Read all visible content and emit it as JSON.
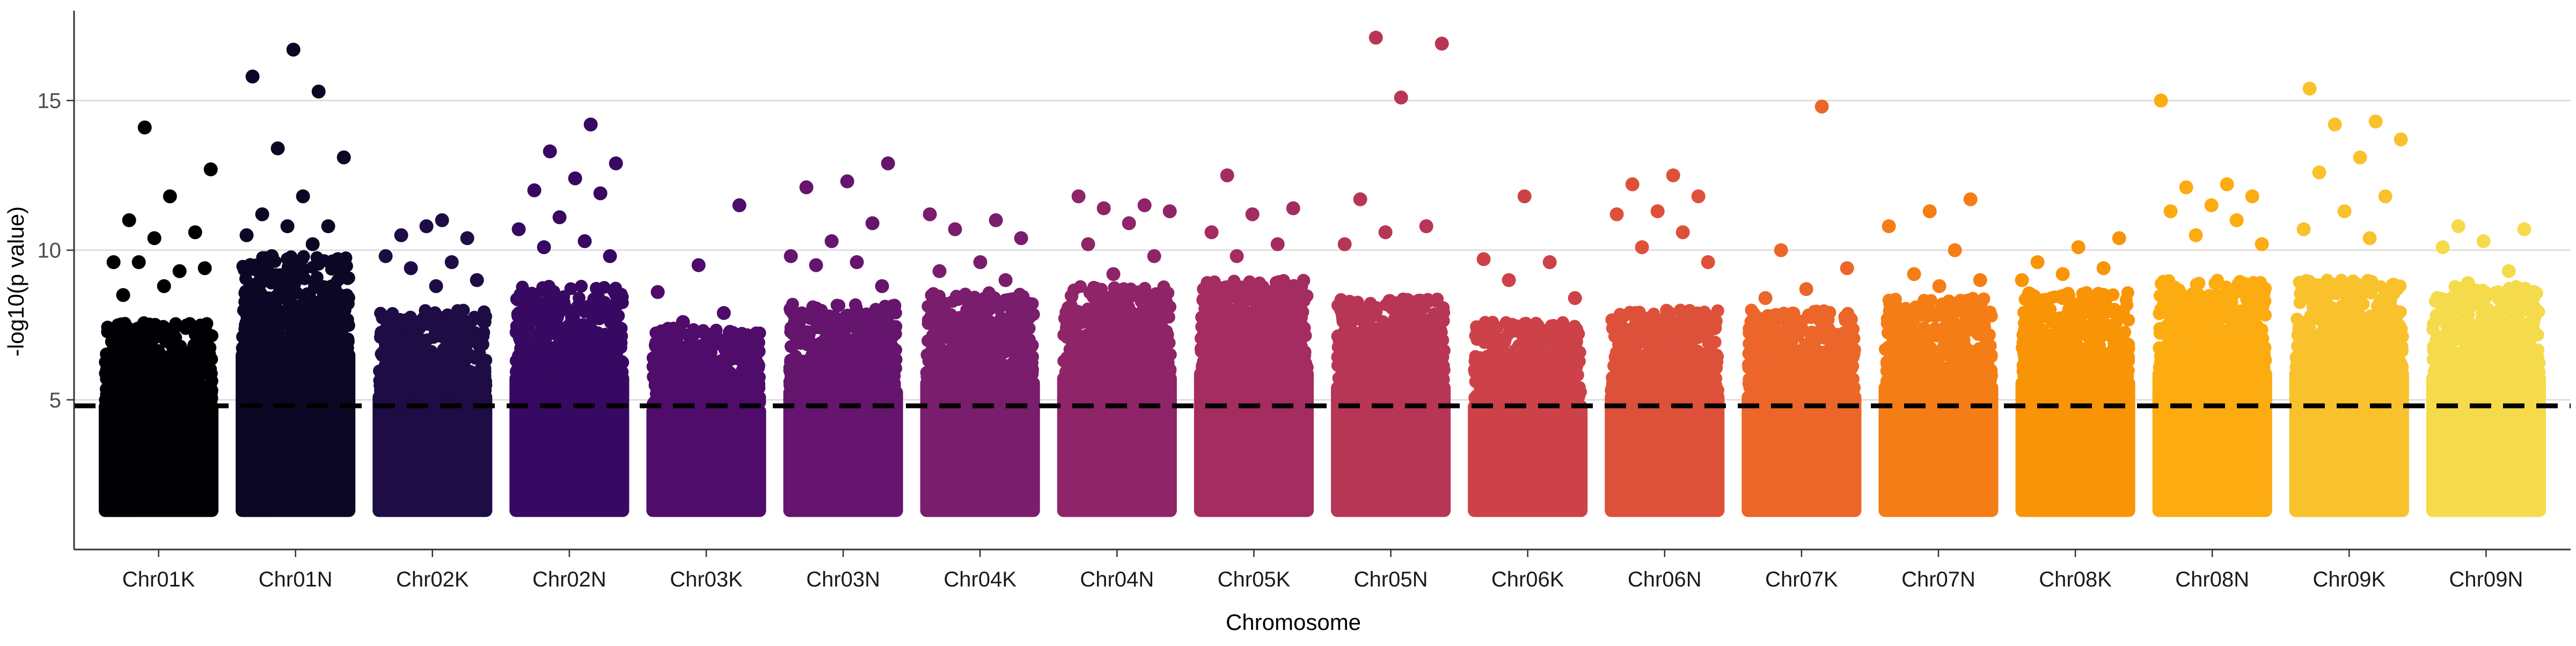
{
  "chart_data": {
    "type": "scatter",
    "title": "",
    "xlabel": "Chromosome",
    "ylabel": "-log10(p value)",
    "ylim": [
      0,
      18
    ],
    "y_ticks": [
      5,
      10,
      15
    ],
    "grid": "horizontal major lines only",
    "threshold": {
      "y": 4.8,
      "style": "dashed",
      "color": "#000000"
    },
    "categories": [
      "Chr01K",
      "Chr01N",
      "Chr02K",
      "Chr02N",
      "Chr03K",
      "Chr03N",
      "Chr04K",
      "Chr04N",
      "Chr05K",
      "Chr05N",
      "Chr06K",
      "Chr06N",
      "Chr07K",
      "Chr07N",
      "Chr08K",
      "Chr08N",
      "Chr09K",
      "Chr09N"
    ],
    "colors": [
      "#000004",
      "#0b0724",
      "#1e0c45",
      "#380962",
      "#4f0c6b",
      "#65156e",
      "#7a1d6d",
      "#8f2469",
      "#a42c60",
      "#b83655",
      "#cc4248",
      "#dd513a",
      "#eb6628",
      "#f57d15",
      "#fa9407",
      "#fcab10",
      "#f9c22c",
      "#f5db4c"
    ],
    "series": [
      {
        "name": "Chr01K",
        "peak_values": [
          14.1,
          12.7,
          11.8,
          11.0,
          10.6,
          10.4,
          9.6,
          9.3,
          9.6,
          9.4,
          8.8,
          8.5
        ],
        "baseline_top": 6.4
      },
      {
        "name": "Chr01N",
        "peak_values": [
          16.7,
          15.8,
          15.3,
          13.4,
          13.1,
          11.8,
          11.2,
          10.8,
          10.8,
          10.5,
          10.2,
          9.8,
          9.7
        ],
        "baseline_top": 8.6
      },
      {
        "name": "Chr02K",
        "peak_values": [
          11.0,
          10.5,
          10.4,
          10.8,
          9.8,
          9.6,
          9.4,
          9.0,
          8.8
        ],
        "baseline_top": 6.8
      },
      {
        "name": "Chr02N",
        "peak_values": [
          14.2,
          13.3,
          12.9,
          12.4,
          12.0,
          11.9,
          11.1,
          10.7,
          10.3,
          10.1,
          9.8
        ],
        "baseline_top": 7.6
      },
      {
        "name": "Chr03K",
        "peak_values": [
          11.5,
          9.5,
          8.6,
          7.9,
          7.6
        ],
        "baseline_top": 6.2
      },
      {
        "name": "Chr03N",
        "peak_values": [
          12.9,
          12.3,
          12.1,
          10.9,
          10.3,
          9.8,
          9.6,
          9.5,
          8.8
        ],
        "baseline_top": 7.0
      },
      {
        "name": "Chr04K",
        "peak_values": [
          11.2,
          11.0,
          10.7,
          10.4,
          9.6,
          9.3,
          9.0
        ],
        "baseline_top": 7.4
      },
      {
        "name": "Chr04N",
        "peak_values": [
          11.8,
          11.5,
          11.4,
          11.3,
          10.9,
          10.2,
          9.8,
          9.2
        ],
        "baseline_top": 7.6
      },
      {
        "name": "Chr05K",
        "peak_values": [
          12.5,
          11.4,
          11.2,
          10.6,
          10.2,
          9.8
        ],
        "baseline_top": 7.8
      },
      {
        "name": "Chr05N",
        "peak_values": [
          17.1,
          16.9,
          15.1,
          11.7,
          10.8,
          10.6,
          10.2
        ],
        "baseline_top": 7.2
      },
      {
        "name": "Chr06K",
        "peak_values": [
          11.8,
          9.7,
          9.6,
          9.0,
          8.4
        ],
        "baseline_top": 6.4
      },
      {
        "name": "Chr06N",
        "peak_values": [
          12.5,
          12.2,
          11.8,
          11.3,
          11.2,
          10.6,
          10.1,
          9.6
        ],
        "baseline_top": 6.8
      },
      {
        "name": "Chr07K",
        "peak_values": [
          14.8,
          10.0,
          9.4,
          8.7,
          8.4
        ],
        "baseline_top": 6.8
      },
      {
        "name": "Chr07N",
        "peak_values": [
          11.7,
          11.3,
          10.8,
          10.0,
          9.2,
          9.0,
          8.8
        ],
        "baseline_top": 7.2
      },
      {
        "name": "Chr08K",
        "peak_values": [
          10.4,
          10.1,
          9.6,
          9.4,
          9.2,
          9.0
        ],
        "baseline_top": 7.4
      },
      {
        "name": "Chr08N",
        "peak_values": [
          15.0,
          12.2,
          12.1,
          11.8,
          11.5,
          11.3,
          11.0,
          10.5,
          10.2
        ],
        "baseline_top": 7.8
      },
      {
        "name": "Chr09K",
        "peak_values": [
          15.4,
          14.3,
          14.2,
          13.7,
          13.1,
          12.6,
          11.8,
          11.3,
          10.7,
          10.4
        ],
        "baseline_top": 7.8
      },
      {
        "name": "Chr09N",
        "peak_values": [
          10.8,
          10.7,
          10.3,
          10.1,
          9.3,
          8.9,
          8.6
        ],
        "baseline_top": 7.6
      }
    ]
  }
}
